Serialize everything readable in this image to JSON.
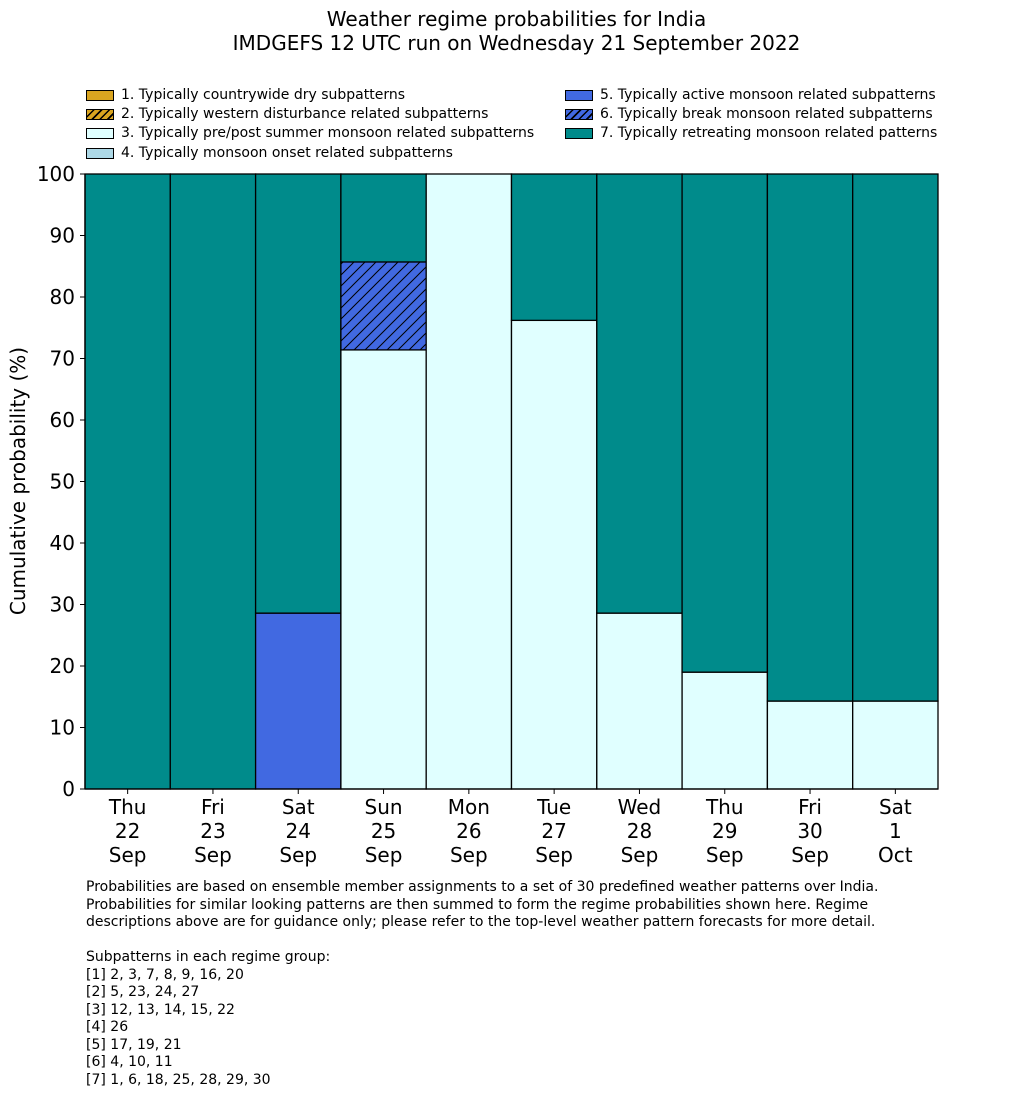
{
  "chart_data": {
    "type": "bar",
    "stacked": true,
    "title": "Weather regime probabilities for India",
    "subtitle": "IMDGEFS 12 UTC run on Wednesday 21 September 2022",
    "xlabel": "",
    "ylabel": "Cumulative probability (%)",
    "ylim": [
      0,
      100
    ],
    "yticks": [
      0,
      10,
      20,
      30,
      40,
      50,
      60,
      70,
      80,
      90,
      100
    ],
    "categories": [
      [
        "Thu",
        "22",
        "Sep"
      ],
      [
        "Fri",
        "23",
        "Sep"
      ],
      [
        "Sat",
        "24",
        "Sep"
      ],
      [
        "Sun",
        "25",
        "Sep"
      ],
      [
        "Mon",
        "26",
        "Sep"
      ],
      [
        "Tue",
        "27",
        "Sep"
      ],
      [
        "Wed",
        "28",
        "Sep"
      ],
      [
        "Thu",
        "29",
        "Sep"
      ],
      [
        "Fri",
        "30",
        "Sep"
      ],
      [
        "Sat",
        "1",
        "Oct"
      ]
    ],
    "series": [
      {
        "name": "1. Typically countrywide dry subpatterns",
        "color": "#DAA520",
        "hatch": false,
        "values": [
          0,
          0,
          0,
          0,
          0,
          0,
          0,
          0,
          0,
          0
        ]
      },
      {
        "name": "2. Typically western disturbance related subpatterns",
        "color": "#DAA520",
        "hatch": true,
        "values": [
          0,
          0,
          0,
          0,
          0,
          0,
          0,
          0,
          0,
          0
        ]
      },
      {
        "name": "3. Typically pre/post summer monsoon related subpatterns",
        "color": "#E0FFFF",
        "hatch": false,
        "values": [
          0,
          0,
          0,
          71.4,
          100,
          76.2,
          28.6,
          19.0,
          14.3,
          14.3
        ]
      },
      {
        "name": "4. Typically monsoon onset related subpatterns",
        "color": "#ADD8E6",
        "hatch": false,
        "values": [
          0,
          0,
          0,
          0,
          0,
          0,
          0,
          0,
          0,
          0
        ]
      },
      {
        "name": "5. Typically active monsoon related subpatterns",
        "color": "#4169E1",
        "hatch": false,
        "values": [
          0,
          0,
          28.6,
          0,
          0,
          0,
          0,
          0,
          0,
          0
        ]
      },
      {
        "name": "6. Typically break monsoon related subpatterns",
        "color": "#4169E1",
        "hatch": true,
        "values": [
          0,
          0,
          0,
          14.3,
          0,
          0,
          0,
          0,
          0,
          0
        ]
      },
      {
        "name": "7. Typically retreating monsoon related patterns",
        "color": "#008B8B",
        "hatch": false,
        "values": [
          100,
          100,
          71.4,
          14.3,
          0,
          23.8,
          71.4,
          81.0,
          85.7,
          85.7
        ]
      }
    ],
    "legend_position": "top"
  },
  "notes": {
    "line1": "Probabilities are based on ensemble member assignments to a set of 30 predefined weather patterns over India.",
    "line2": "Probabilities for similar looking patterns are then summed to form the regime probabilities shown here. Regime",
    "line3": "descriptions above are for guidance only; please refer to the top-level weather pattern forecasts for more detail.",
    "groups_header": "Subpatterns in each regime group:",
    "groups": [
      "[1] 2, 3, 7, 8, 9, 16, 20",
      "[2] 5, 23, 24, 27",
      "[3] 12, 13, 14, 15, 22",
      "[4] 26",
      "[5] 17, 19, 21",
      "[6] 4, 10, 11",
      "[7] 1, 6, 18, 25, 28, 29, 30"
    ]
  }
}
